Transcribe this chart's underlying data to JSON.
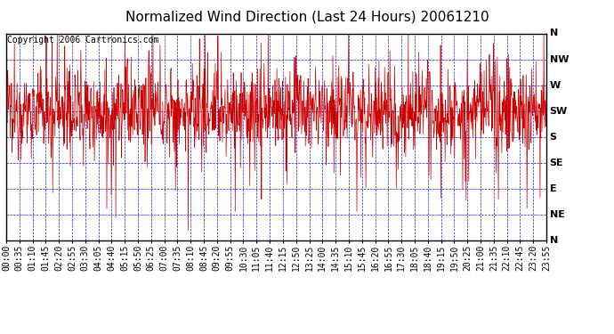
{
  "title": "Normalized Wind Direction (Last 24 Hours) 20061210",
  "copyright_text": "Copyright 2006 Cartronics.com",
  "y_labels": [
    "N",
    "NW",
    "W",
    "SW",
    "S",
    "SE",
    "E",
    "NE",
    "N"
  ],
  "y_values": [
    8,
    7,
    6,
    5,
    4,
    3,
    2,
    1,
    0
  ],
  "x_tick_labels": [
    "00:00",
    "00:35",
    "01:10",
    "01:45",
    "02:20",
    "02:55",
    "03:30",
    "04:05",
    "04:40",
    "05:15",
    "05:50",
    "06:25",
    "07:00",
    "07:35",
    "08:10",
    "08:45",
    "09:20",
    "09:55",
    "10:30",
    "11:05",
    "11:40",
    "12:15",
    "12:50",
    "13:25",
    "14:00",
    "14:35",
    "15:10",
    "15:45",
    "16:20",
    "16:55",
    "17:30",
    "18:05",
    "18:40",
    "19:15",
    "19:50",
    "20:25",
    "21:00",
    "21:35",
    "22:10",
    "22:45",
    "23:20",
    "23:55"
  ],
  "n_points": 1440,
  "mean_value": 5.0,
  "noise_std": 0.8,
  "line_color": "#cc0000",
  "grid_color": "#0000cc",
  "background_color": "#ffffff",
  "title_fontsize": 11,
  "copyright_fontsize": 7,
  "tick_fontsize": 7,
  "ylim_min": 0,
  "ylim_max": 8
}
